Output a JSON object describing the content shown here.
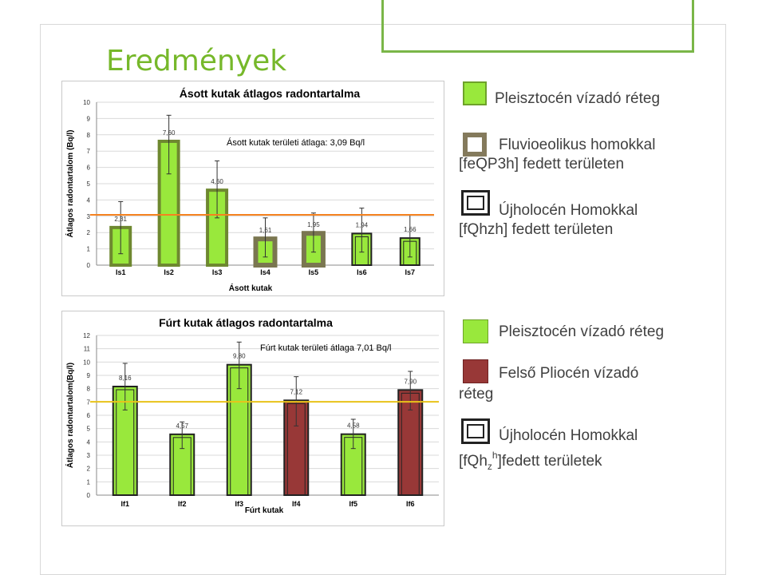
{
  "slide_title": "Eredmények",
  "colors": {
    "green": "#99e83c",
    "dark_green": "#6e8830",
    "brown": "#983837",
    "avg_line": "#f5821f",
    "avg_line2": "#e8c31a"
  },
  "chart_data": [
    {
      "type": "bar",
      "title": "Ásott kutak átlagos radontartalma",
      "xlabel": "Ásott kutak",
      "ylabel": "Átlagos radontartalom (Bq/l)",
      "ylim": [
        0,
        10
      ],
      "yticks": [
        "0",
        "1",
        "2",
        "3",
        "4",
        "5",
        "6",
        "7",
        "8",
        "9",
        "10"
      ],
      "categories": [
        "Is1",
        "Is2",
        "Is3",
        "Is4",
        "Is5",
        "Is6",
        "Is7"
      ],
      "values": [
        2.31,
        7.6,
        4.6,
        1.61,
        1.95,
        1.94,
        1.66
      ],
      "value_labels": [
        "2,31",
        "7,60",
        "4,60",
        "1,61",
        "1,95",
        "1,94",
        "1,66"
      ],
      "error": [
        [
          0.7,
          3.9
        ],
        [
          5.6,
          9.2
        ],
        [
          2.9,
          6.4
        ],
        [
          0.5,
          2.9
        ],
        [
          0.8,
          3.2
        ],
        [
          0.8,
          3.5
        ],
        [
          0.5,
          3.1
        ]
      ],
      "bar_styles": [
        "plain",
        "plain",
        "plain",
        "framed",
        "framed",
        "double",
        "double"
      ],
      "average": 3.09,
      "average_label": "Ásott kutak területi átlaga: 3,09 Bq/l",
      "grid": true
    },
    {
      "type": "bar",
      "title": "Fúrt kutak átlagos radontartalma",
      "xlabel": "Fúrt kutak",
      "ylabel": "Átlagos radontartalom(Bq/l)",
      "ylim": [
        0,
        12
      ],
      "yticks": [
        "0",
        "1",
        "2",
        "3",
        "4",
        "5",
        "6",
        "7",
        "8",
        "9",
        "10",
        "11",
        "12"
      ],
      "categories": [
        "If1",
        "If2",
        "If3",
        "If4",
        "If5",
        "If6"
      ],
      "values": [
        8.16,
        4.57,
        9.8,
        7.12,
        4.58,
        7.9
      ],
      "value_labels": [
        "8,16",
        "4,57",
        "9,80",
        "7,12",
        "4,58",
        "7,90"
      ],
      "error": [
        [
          6.4,
          9.9
        ],
        [
          3.5,
          5.5
        ],
        [
          8.0,
          11.5
        ],
        [
          5.2,
          8.9
        ],
        [
          3.5,
          5.7
        ],
        [
          6.4,
          9.3
        ]
      ],
      "bar_colors": [
        "green",
        "green",
        "green",
        "brown",
        "green",
        "brown"
      ],
      "bar_styles": [
        "double",
        "double",
        "double",
        "double",
        "double",
        "double"
      ],
      "average": 7.01,
      "average_label": "Fúrt kutak területi átlaga 7,01 Bq/l",
      "grid": true
    }
  ],
  "legend_top": {
    "items": [
      {
        "label": "Pleisztocén vízadó réteg",
        "style": "green"
      },
      {
        "label": "Fluvioeolikus homokkal",
        "label2": "[feQP3h] fedett területen",
        "style": "framed"
      },
      {
        "label": "Újholocén Homokkal",
        "label2": "[fQhzh] fedett területen",
        "style": "double"
      }
    ]
  },
  "legend_bottom": {
    "items": [
      {
        "label": "Pleisztocén vízadó réteg",
        "style": "green"
      },
      {
        "label": "Felső Pliocén vízadó",
        "label2": "réteg",
        "style": "brown"
      },
      {
        "label": "Újholocén Homokkal",
        "label2_a": "[fQh",
        "label2_sub": "z",
        "label2_sup": "h",
        "label2_b": "]fedett területek",
        "style": "double"
      }
    ]
  }
}
